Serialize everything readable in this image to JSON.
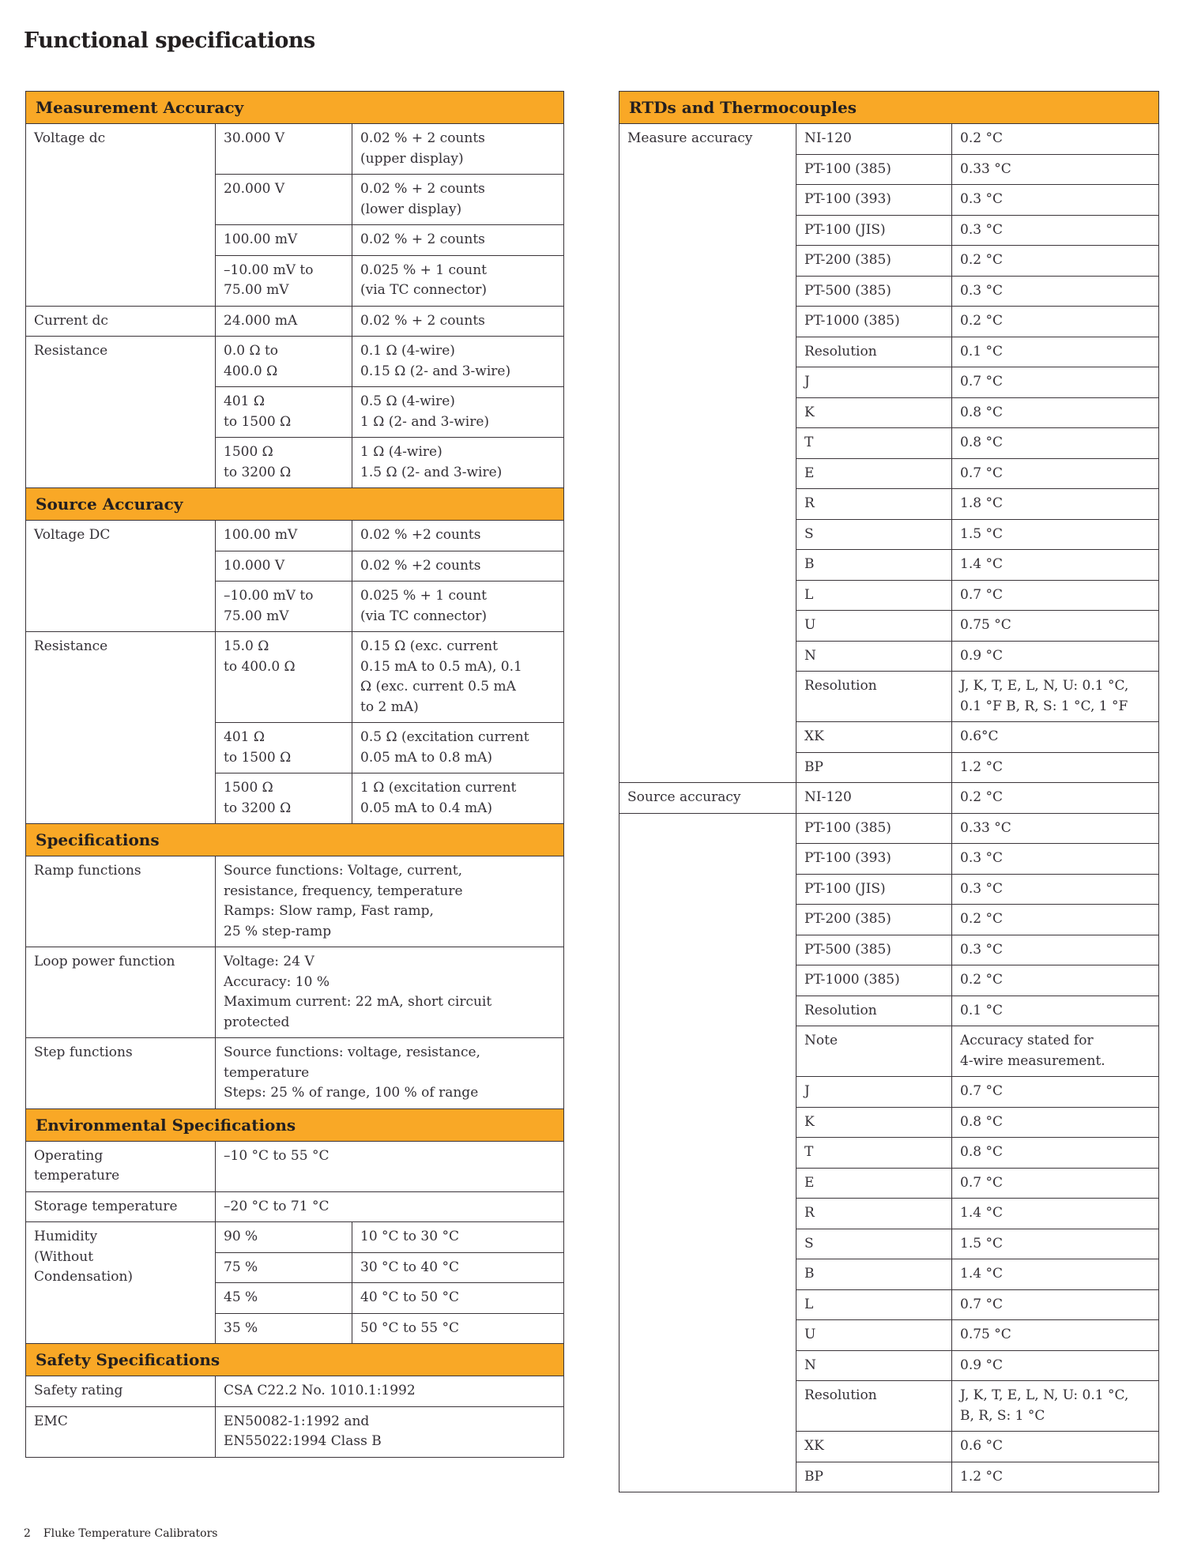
{
  "page": {
    "title": "Functional specifications",
    "footer_page_number": "2",
    "footer_text": "Fluke Temperature Calibrators"
  },
  "colors": {
    "header_bg": "#F9A826",
    "border": "#3A3439",
    "text": "#332F35",
    "page_bg": "#FFFFFF"
  },
  "left_table": {
    "cols": 3,
    "rows": [
      {
        "section": "Measurement Accuracy"
      },
      {
        "cells": [
          {
            "text": "Voltage dc",
            "rowspan": 4,
            "kind": "label"
          },
          {
            "text": "30.000 V",
            "kind": "range"
          },
          {
            "text": "0.02 % + 2 counts\n(upper display)",
            "kind": "value"
          }
        ]
      },
      {
        "cells": [
          {
            "text": "20.000 V",
            "kind": "range"
          },
          {
            "text": "0.02 % + 2 counts\n(lower display)",
            "kind": "value"
          }
        ]
      },
      {
        "cells": [
          {
            "text": "100.00 mV",
            "kind": "range"
          },
          {
            "text": "0.02 % + 2 counts",
            "kind": "value"
          }
        ]
      },
      {
        "cells": [
          {
            "text": "–10.00 mV to\n75.00 mV",
            "kind": "range"
          },
          {
            "text": "0.025 % + 1 count\n(via TC connector)",
            "kind": "value"
          }
        ]
      },
      {
        "cells": [
          {
            "text": "Current dc",
            "kind": "label"
          },
          {
            "text": "24.000 mA",
            "kind": "range"
          },
          {
            "text": "0.02 % + 2 counts",
            "kind": "value"
          }
        ]
      },
      {
        "cells": [
          {
            "text": "Resistance",
            "rowspan": 3,
            "kind": "label"
          },
          {
            "text": "0.0 Ω to\n400.0 Ω",
            "kind": "range"
          },
          {
            "text": "0.1 Ω (4-wire)\n0.15 Ω (2- and 3-wire)",
            "kind": "value"
          }
        ]
      },
      {
        "cells": [
          {
            "text": "401 Ω\nto 1500 Ω",
            "kind": "range"
          },
          {
            "text": "0.5 Ω (4-wire)\n1 Ω (2- and 3-wire)",
            "kind": "value"
          }
        ]
      },
      {
        "cells": [
          {
            "text": "1500 Ω\nto 3200 Ω",
            "kind": "range"
          },
          {
            "text": "1 Ω (4-wire)\n1.5 Ω (2- and 3-wire)",
            "kind": "value"
          }
        ]
      },
      {
        "section": "Source Accuracy"
      },
      {
        "cells": [
          {
            "text": "Voltage DC",
            "rowspan": 3,
            "kind": "label"
          },
          {
            "text": "100.00 mV",
            "kind": "range"
          },
          {
            "text": "0.02 % +2 counts",
            "kind": "value"
          }
        ]
      },
      {
        "cells": [
          {
            "text": "10.000 V",
            "kind": "range"
          },
          {
            "text": "0.02 % +2 counts",
            "kind": "value"
          }
        ]
      },
      {
        "cells": [
          {
            "text": "–10.00 mV to\n75.00 mV",
            "kind": "range"
          },
          {
            "text": "0.025 % + 1 count\n(via TC connector)",
            "kind": "value"
          }
        ]
      },
      {
        "cells": [
          {
            "text": "Resistance",
            "rowspan": 3,
            "kind": "label"
          },
          {
            "text": "15.0 Ω\nto 400.0 Ω",
            "kind": "range"
          },
          {
            "text": "0.15 Ω (exc. current\n0.15 mA to 0.5 mA), 0.1\nΩ (exc. current 0.5 mA\nto 2 mA)",
            "kind": "value"
          }
        ]
      },
      {
        "cells": [
          {
            "text": "401 Ω\nto 1500 Ω",
            "kind": "range"
          },
          {
            "text": "0.5 Ω (excitation current\n0.05 mA to 0.8 mA)",
            "kind": "value"
          }
        ]
      },
      {
        "cells": [
          {
            "text": "1500 Ω\nto 3200 Ω",
            "kind": "range"
          },
          {
            "text": "1 Ω (excitation current\n0.05 mA to 0.4 mA)",
            "kind": "value"
          }
        ]
      },
      {
        "section": "Specifications"
      },
      {
        "cells": [
          {
            "text": "Ramp functions",
            "kind": "label"
          },
          {
            "text": "Source functions: Voltage, current,\nresistance, frequency, temperature\nRamps: Slow ramp, Fast ramp,\n25 % step-ramp",
            "colspan": 2,
            "kind": "value"
          }
        ]
      },
      {
        "cells": [
          {
            "text": "Loop power function",
            "kind": "label"
          },
          {
            "text": "Voltage: 24 V\nAccuracy: 10 %\nMaximum current: 22 mA, short circuit\nprotected",
            "colspan": 2,
            "kind": "value"
          }
        ]
      },
      {
        "cells": [
          {
            "text": "Step functions",
            "kind": "label"
          },
          {
            "text": "Source functions: voltage, resistance,\ntemperature\nSteps: 25 % of range, 100 % of range",
            "colspan": 2,
            "kind": "value"
          }
        ]
      },
      {
        "section": "Environmental Specifications"
      },
      {
        "cells": [
          {
            "text": "Operating\ntemperature",
            "kind": "label"
          },
          {
            "text": "–10 °C to 55 °C",
            "colspan": 2,
            "kind": "value"
          }
        ]
      },
      {
        "cells": [
          {
            "text": "Storage temperature",
            "kind": "label"
          },
          {
            "text": "–20 °C to 71 °C",
            "colspan": 2,
            "kind": "value"
          }
        ]
      },
      {
        "cells": [
          {
            "text": "Humidity\n(Without\nCondensation)",
            "rowspan": 4,
            "kind": "label"
          },
          {
            "text": "90 %",
            "kind": "range"
          },
          {
            "text": "10 °C to 30 °C",
            "kind": "value"
          }
        ]
      },
      {
        "cells": [
          {
            "text": "75 %",
            "kind": "range"
          },
          {
            "text": "30 °C to 40 °C",
            "kind": "value"
          }
        ]
      },
      {
        "cells": [
          {
            "text": "45 %",
            "kind": "range"
          },
          {
            "text": "40 °C to 50 °C",
            "kind": "value"
          }
        ]
      },
      {
        "cells": [
          {
            "text": "35 %",
            "kind": "range"
          },
          {
            "text": "50 °C to 55 °C",
            "kind": "value"
          }
        ]
      },
      {
        "section": "Safety Specifications"
      },
      {
        "cells": [
          {
            "text": "Safety rating",
            "kind": "label"
          },
          {
            "text": "CSA C22.2 No. 1010.1:1992",
            "colspan": 2,
            "kind": "value"
          }
        ]
      },
      {
        "cells": [
          {
            "text": "EMC",
            "kind": "label"
          },
          {
            "text": "EN50082-1:1992 and\nEN55022:1994 Class B",
            "colspan": 2,
            "kind": "value"
          }
        ]
      }
    ]
  },
  "right_table": {
    "cols": 3,
    "rows": [
      {
        "section": "RTDs and Thermocouples"
      },
      {
        "cells": [
          {
            "text": "Measure accuracy",
            "rowspan": 21,
            "kind": "label"
          },
          {
            "text": "NI-120",
            "kind": "range"
          },
          {
            "text": "0.2 °C",
            "kind": "value"
          }
        ]
      },
      {
        "cells": [
          {
            "text": "PT-100 (385)",
            "kind": "range"
          },
          {
            "text": "0.33 °C",
            "kind": "value"
          }
        ]
      },
      {
        "cells": [
          {
            "text": "PT-100 (393)",
            "kind": "range"
          },
          {
            "text": "0.3 °C",
            "kind": "value"
          }
        ]
      },
      {
        "cells": [
          {
            "text": "PT-100 (JIS)",
            "kind": "range"
          },
          {
            "text": "0.3 °C",
            "kind": "value"
          }
        ]
      },
      {
        "cells": [
          {
            "text": "PT-200 (385)",
            "kind": "range"
          },
          {
            "text": "0.2 °C",
            "kind": "value"
          }
        ]
      },
      {
        "cells": [
          {
            "text": "PT-500 (385)",
            "kind": "range"
          },
          {
            "text": "0.3 °C",
            "kind": "value"
          }
        ]
      },
      {
        "cells": [
          {
            "text": "PT-1000 (385)",
            "kind": "range"
          },
          {
            "text": "0.2 °C",
            "kind": "value"
          }
        ]
      },
      {
        "cells": [
          {
            "text": "Resolution",
            "kind": "range"
          },
          {
            "text": "0.1 °C",
            "kind": "value"
          }
        ]
      },
      {
        "cells": [
          {
            "text": "J",
            "kind": "range"
          },
          {
            "text": "0.7 °C",
            "kind": "value"
          }
        ]
      },
      {
        "cells": [
          {
            "text": "K",
            "kind": "range"
          },
          {
            "text": "0.8 °C",
            "kind": "value"
          }
        ]
      },
      {
        "cells": [
          {
            "text": "T",
            "kind": "range"
          },
          {
            "text": "0.8 °C",
            "kind": "value"
          }
        ]
      },
      {
        "cells": [
          {
            "text": "E",
            "kind": "range"
          },
          {
            "text": "0.7 °C",
            "kind": "value"
          }
        ]
      },
      {
        "cells": [
          {
            "text": "R",
            "kind": "range"
          },
          {
            "text": "1.8 °C",
            "kind": "value"
          }
        ]
      },
      {
        "cells": [
          {
            "text": "S",
            "kind": "range"
          },
          {
            "text": "1.5 °C",
            "kind": "value"
          }
        ]
      },
      {
        "cells": [
          {
            "text": "B",
            "kind": "range"
          },
          {
            "text": "1.4 °C",
            "kind": "value"
          }
        ]
      },
      {
        "cells": [
          {
            "text": "L",
            "kind": "range"
          },
          {
            "text": "0.7 °C",
            "kind": "value"
          }
        ]
      },
      {
        "cells": [
          {
            "text": "U",
            "kind": "range"
          },
          {
            "text": "0.75 °C",
            "kind": "value"
          }
        ]
      },
      {
        "cells": [
          {
            "text": "N",
            "kind": "range"
          },
          {
            "text": "0.9 °C",
            "kind": "value"
          }
        ]
      },
      {
        "cells": [
          {
            "text": "Resolution",
            "kind": "range"
          },
          {
            "text": "J, K, T, E, L, N, U: 0.1 °C,\n0.1 °F B, R, S: 1 °C, 1 °F",
            "kind": "value"
          }
        ]
      },
      {
        "cells": [
          {
            "text": "XK",
            "kind": "range"
          },
          {
            "text": "0.6°C",
            "kind": "value"
          }
        ]
      },
      {
        "cells": [
          {
            "text": "BP",
            "kind": "range"
          },
          {
            "text": "1.2 °C",
            "kind": "value"
          }
        ]
      },
      {
        "cells": [
          {
            "text": "Source accuracy",
            "kind": "label"
          },
          {
            "text": "NI-120",
            "kind": "range"
          },
          {
            "text": "0.2 °C",
            "kind": "value"
          }
        ]
      },
      {
        "cells": [
          {
            "text": "",
            "rowspan": 21,
            "kind": "label"
          },
          {
            "text": "PT-100 (385)",
            "kind": "range"
          },
          {
            "text": "0.33 °C",
            "kind": "value"
          }
        ]
      },
      {
        "cells": [
          {
            "text": "PT-100 (393)",
            "kind": "range"
          },
          {
            "text": "0.3 °C",
            "kind": "value"
          }
        ]
      },
      {
        "cells": [
          {
            "text": "PT-100 (JIS)",
            "kind": "range"
          },
          {
            "text": "0.3 °C",
            "kind": "value"
          }
        ]
      },
      {
        "cells": [
          {
            "text": "PT-200 (385)",
            "kind": "range"
          },
          {
            "text": "0.2 °C",
            "kind": "value"
          }
        ]
      },
      {
        "cells": [
          {
            "text": "PT-500 (385)",
            "kind": "range"
          },
          {
            "text": "0.3 °C",
            "kind": "value"
          }
        ]
      },
      {
        "cells": [
          {
            "text": "PT-1000 (385)",
            "kind": "range"
          },
          {
            "text": "0.2 °C",
            "kind": "value"
          }
        ]
      },
      {
        "cells": [
          {
            "text": "Resolution",
            "kind": "range"
          },
          {
            "text": "0.1 °C",
            "kind": "value"
          }
        ]
      },
      {
        "cells": [
          {
            "text": "Note",
            "kind": "range"
          },
          {
            "text": "Accuracy stated for\n4-wire measurement.",
            "kind": "value"
          }
        ]
      },
      {
        "cells": [
          {
            "text": "J",
            "kind": "range"
          },
          {
            "text": "0.7 °C",
            "kind": "value"
          }
        ]
      },
      {
        "cells": [
          {
            "text": "K",
            "kind": "range"
          },
          {
            "text": "0.8 °C",
            "kind": "value"
          }
        ]
      },
      {
        "cells": [
          {
            "text": "T",
            "kind": "range"
          },
          {
            "text": "0.8 °C",
            "kind": "value"
          }
        ]
      },
      {
        "cells": [
          {
            "text": "E",
            "kind": "range"
          },
          {
            "text": "0.7 °C",
            "kind": "value"
          }
        ]
      },
      {
        "cells": [
          {
            "text": "R",
            "kind": "range"
          },
          {
            "text": "1.4 °C",
            "kind": "value"
          }
        ]
      },
      {
        "cells": [
          {
            "text": "S",
            "kind": "range"
          },
          {
            "text": "1.5 °C",
            "kind": "value"
          }
        ]
      },
      {
        "cells": [
          {
            "text": "B",
            "kind": "range"
          },
          {
            "text": "1.4 °C",
            "kind": "value"
          }
        ]
      },
      {
        "cells": [
          {
            "text": "L",
            "kind": "range"
          },
          {
            "text": "0.7 °C",
            "kind": "value"
          }
        ]
      },
      {
        "cells": [
          {
            "text": "U",
            "kind": "range"
          },
          {
            "text": "0.75 °C",
            "kind": "value"
          }
        ]
      },
      {
        "cells": [
          {
            "text": "N",
            "kind": "range"
          },
          {
            "text": "0.9 °C",
            "kind": "value"
          }
        ]
      },
      {
        "cells": [
          {
            "text": "Resolution",
            "kind": "range"
          },
          {
            "text": "J, K, T, E, L, N, U: 0.1 °C,\nB, R, S: 1 °C",
            "kind": "value"
          }
        ]
      },
      {
        "cells": [
          {
            "text": "XK",
            "kind": "range"
          },
          {
            "text": "0.6 °C",
            "kind": "value"
          }
        ]
      },
      {
        "cells": [
          {
            "text": "BP",
            "kind": "range"
          },
          {
            "text": "1.2 °C",
            "kind": "value"
          }
        ]
      }
    ]
  }
}
